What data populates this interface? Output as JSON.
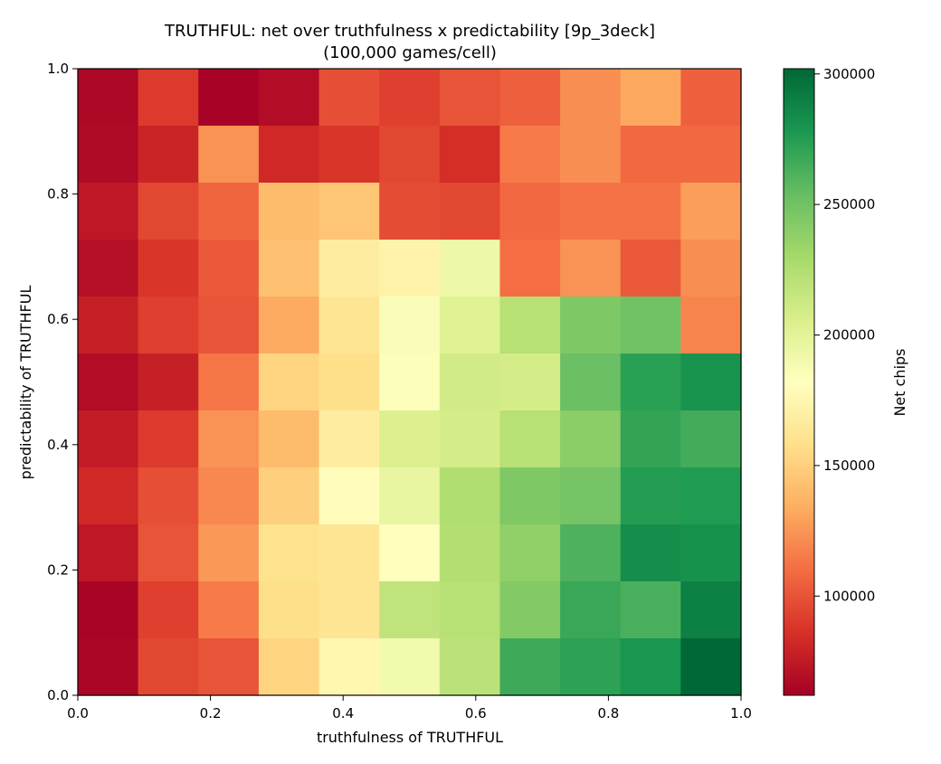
{
  "chart_data": {
    "type": "heatmap",
    "title": "TRUTHFUL: net over truthfulness x predictability  [9p_3deck]",
    "subtitle": "(100,000 games/cell)",
    "xlabel": "truthfulness of TRUTHFUL",
    "ylabel": "predictability of TRUTHFUL",
    "xlim": [
      0.0,
      1.0
    ],
    "ylim": [
      0.0,
      1.0
    ],
    "xticks": [
      "0.0",
      "0.2",
      "0.4",
      "0.6",
      "0.8",
      "1.0"
    ],
    "yticks": [
      "0.0",
      "0.2",
      "0.4",
      "0.6",
      "0.8",
      "1.0"
    ],
    "colorbar": {
      "label": "Net chips",
      "colormap": "RdYlGn",
      "min": 62000,
      "max": 302000,
      "ticks": [
        "100000",
        "150000",
        "200000",
        "250000",
        "300000"
      ]
    },
    "grid": false,
    "n_cols": 11,
    "n_rows": 11,
    "x_centers": [
      0.0,
      0.1,
      0.2,
      0.3,
      0.4,
      0.5,
      0.6,
      0.7,
      0.8,
      0.9,
      1.0
    ],
    "y_centers_bottom_to_top": [
      0.0,
      0.1,
      0.2,
      0.3,
      0.4,
      0.5,
      0.6,
      0.7,
      0.8,
      0.9,
      1.0
    ],
    "values_top_row_first": [
      [
        66000,
        90000,
        63000,
        68000,
        98000,
        92000,
        100000,
        105000,
        122000,
        132000,
        105000
      ],
      [
        67000,
        80000,
        124000,
        82000,
        88000,
        95000,
        85000,
        115000,
        122000,
        108000,
        108000
      ],
      [
        74000,
        95000,
        107000,
        140000,
        145000,
        97000,
        95000,
        108000,
        112000,
        112000,
        128000
      ],
      [
        70000,
        88000,
        102000,
        143000,
        168000,
        172000,
        193000,
        110000,
        124000,
        102000,
        122000
      ],
      [
        78000,
        92000,
        100000,
        133000,
        162000,
        185000,
        202000,
        222000,
        245000,
        250000,
        118000
      ],
      [
        68000,
        78000,
        113000,
        152000,
        158000,
        184000,
        210000,
        208000,
        252000,
        273000,
        280000
      ],
      [
        76000,
        90000,
        124000,
        140000,
        168000,
        204000,
        208000,
        222000,
        240000,
        270000,
        265000
      ],
      [
        82000,
        98000,
        120000,
        150000,
        180000,
        196000,
        225000,
        245000,
        248000,
        275000,
        276000
      ],
      [
        74000,
        100000,
        126000,
        160000,
        162000,
        181000,
        224000,
        238000,
        262000,
        283000,
        281000
      ],
      [
        64000,
        92000,
        115000,
        158000,
        162000,
        218000,
        222000,
        243000,
        268000,
        263000,
        290000
      ],
      [
        65000,
        95000,
        100000,
        152000,
        175000,
        190000,
        220000,
        267000,
        272000,
        279000,
        302000
      ]
    ]
  }
}
